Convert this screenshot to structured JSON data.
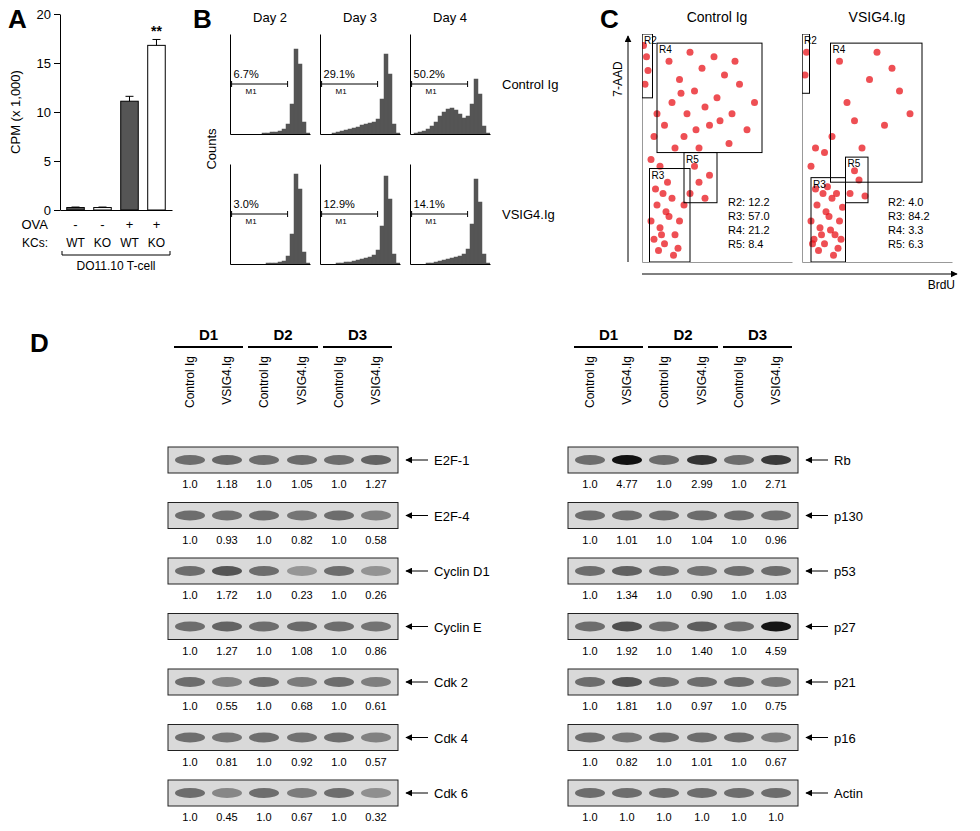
{
  "chart_data": [
    {
      "panel": "A",
      "type": "bar",
      "ylabel": "CPM (x 1,000)",
      "ylim": [
        0,
        20
      ],
      "yticks": [
        0,
        5,
        10,
        15,
        20
      ],
      "categories": [
        "WT",
        "KO",
        "WT",
        "KO"
      ],
      "category_label": "KCs:",
      "values": [
        0.25,
        0.25,
        11.1,
        16.8
      ],
      "errors": [
        0.05,
        0.05,
        0.5,
        0.6
      ],
      "colors": [
        "#555555",
        "#ffffff",
        "#555555",
        "#ffffff"
      ],
      "significance": [
        null,
        null,
        null,
        "**"
      ],
      "condition_label": "OVA",
      "conditions": [
        "-",
        "-",
        "+",
        "+"
      ],
      "group_label": "DO11.10 T-cell"
    },
    {
      "panel": "B",
      "type": "histogram",
      "ylabel": "Counts",
      "columns": [
        "Day 2",
        "Day 3",
        "Day 4"
      ],
      "rows": [
        "Control Ig",
        "VSIG4.Ig"
      ],
      "xlim": [
        0,
        100
      ],
      "ylim": [
        0,
        100
      ],
      "tick_labels": false,
      "bins": [
        0,
        5,
        10,
        15,
        20,
        25,
        30,
        35,
        40,
        45,
        50,
        55,
        60,
        65,
        70,
        75,
        80,
        85,
        90,
        95,
        100
      ],
      "gate": [
        2,
        72
      ],
      "gate_name": "M1",
      "cells": [
        [
          {
            "counts": [
              0,
              0,
              0,
              0,
              0,
              0,
              0,
              0,
              1,
              1,
              2,
              2,
              3,
              5,
              10,
              30,
              85,
              70,
              12,
              1
            ],
            "label": "6.7%"
          },
          {
            "counts": [
              0,
              0,
              0,
              1,
              2,
              3,
              4,
              5,
              6,
              7,
              9,
              10,
              11,
              12,
              15,
              35,
              80,
              60,
              10,
              1
            ],
            "label": "29.1%"
          },
          {
            "counts": [
              0,
              1,
              2,
              3,
              5,
              8,
              12,
              18,
              22,
              25,
              26,
              24,
              20,
              16,
              18,
              30,
              55,
              40,
              8,
              1
            ],
            "label": "50.2%"
          }
        ],
        [
          {
            "counts": [
              0,
              0,
              0,
              0,
              0,
              0,
              0,
              0,
              0,
              1,
              1,
              1,
              2,
              3,
              8,
              30,
              90,
              75,
              12,
              1
            ],
            "label": "3.0%"
          },
          {
            "counts": [
              0,
              0,
              0,
              0,
              1,
              1,
              2,
              2,
              3,
              4,
              5,
              6,
              7,
              9,
              14,
              38,
              88,
              65,
              10,
              1
            ],
            "label": "12.9%"
          },
          {
            "counts": [
              0,
              0,
              0,
              0,
              1,
              1,
              2,
              3,
              4,
              5,
              6,
              7,
              8,
              10,
              15,
              40,
              85,
              62,
              10,
              1
            ],
            "label": "14.1%"
          }
        ]
      ]
    },
    {
      "panel": "C",
      "type": "scatter",
      "xlabel": "BrdU",
      "ylabel": "7-AAD",
      "columns": [
        "Control Ig",
        "VSIG4.Ig"
      ],
      "xlim": [
        0,
        100
      ],
      "ylim": [
        0,
        100
      ],
      "tick_labels": false,
      "color": "#e8141b",
      "plots": [
        {
          "x": [
            8,
            12,
            15,
            18,
            10,
            22,
            14,
            20,
            25,
            6,
            17,
            11,
            24,
            28,
            9,
            21,
            16,
            13,
            32,
            38,
            42,
            35,
            45,
            15,
            20,
            25,
            18,
            30,
            35,
            28,
            40,
            45,
            50,
            38,
            55,
            60,
            22,
            32,
            48,
            65,
            70,
            42,
            26,
            58,
            36,
            52,
            75,
            62,
            2,
            3,
            4,
            1,
            6,
            8,
            10,
            12
          ],
          "y": [
            10,
            15,
            8,
            20,
            25,
            12,
            30,
            28,
            18,
            18,
            35,
            5,
            6,
            25,
            32,
            3,
            22,
            12,
            30,
            35,
            28,
            42,
            38,
            60,
            70,
            80,
            88,
            65,
            75,
            55,
            85,
            60,
            72,
            50,
            82,
            65,
            50,
            92,
            90,
            78,
            58,
            68,
            74,
            52,
            58,
            62,
            70,
            88,
            78,
            90,
            84,
            95,
            45,
            55,
            65,
            42
          ],
          "gates": [
            {
              "name": "R2",
              "x": [
                0,
                7
              ],
              "y": [
                72,
                100
              ]
            },
            {
              "name": "R4",
              "x": [
                10,
                80
              ],
              "y": [
                48,
                96
              ]
            },
            {
              "name": "R3",
              "x": [
                5,
                32
              ],
              "y": [
                0,
                41
              ]
            },
            {
              "name": "R5",
              "x": [
                28,
                50
              ],
              "y": [
                26,
                48
              ]
            }
          ],
          "stats": [
            "R2: 12.2",
            "R3: 57.0",
            "R4: 21.2",
            "R5: 8.4"
          ]
        },
        {
          "x": [
            8,
            12,
            15,
            18,
            10,
            22,
            14,
            20,
            25,
            6,
            17,
            11,
            24,
            27,
            9,
            21,
            16,
            13,
            19,
            23,
            7,
            26,
            32,
            38,
            42,
            35,
            20,
            30,
            45,
            55,
            40,
            65,
            25,
            50,
            72,
            35,
            60,
            15,
            2,
            3,
            6,
            9
          ],
          "y": [
            10,
            15,
            8,
            20,
            25,
            12,
            30,
            28,
            18,
            18,
            33,
            5,
            6,
            24,
            32,
            3,
            22,
            12,
            14,
            30,
            8,
            10,
            30,
            36,
            29,
            40,
            55,
            70,
            80,
            60,
            50,
            75,
            88,
            92,
            65,
            62,
            85,
            48,
            82,
            92,
            42,
            50
          ],
          "gates": [
            {
              "name": "R2",
              "x": [
                0,
                5
              ],
              "y": [
                74,
                100
              ]
            },
            {
              "name": "R4",
              "x": [
                19,
                80
              ],
              "y": [
                35,
                96
              ]
            },
            {
              "name": "R3",
              "x": [
                6,
                29
              ],
              "y": [
                0,
                37
              ]
            },
            {
              "name": "R5",
              "x": [
                29,
                44
              ],
              "y": [
                26,
                46
              ]
            }
          ],
          "stats": [
            "R2: 4.0",
            "R3: 84.2",
            "R4: 3.3",
            "R5: 6.3"
          ]
        }
      ]
    }
  ],
  "blots": {
    "panel": "D",
    "sides": [
      {
        "groups": [
          "D1",
          "D2",
          "D3"
        ],
        "lanes": [
          "Control Ig",
          "VSIG4.Ig",
          "Control Ig",
          "VSIG4.Ig",
          "Control Ig",
          "VSIG4.Ig"
        ],
        "rows": [
          {
            "name": "E2F-1",
            "values": [
              1.0,
              1.18,
              1.0,
              1.05,
              1.0,
              1.27
            ],
            "value_labels": [
              "1.0",
              "1.18",
              "1.0",
              "1.05",
              "1.0",
              "1.27"
            ]
          },
          {
            "name": "E2F-4",
            "values": [
              1.0,
              0.93,
              1.0,
              0.82,
              1.0,
              0.58
            ],
            "value_labels": [
              "1.0",
              "0.93",
              "1.0",
              "0.82",
              "1.0",
              "0.58"
            ]
          },
          {
            "name": "Cyclin D1",
            "values": [
              1.0,
              1.72,
              1.0,
              0.23,
              1.0,
              0.26
            ],
            "value_labels": [
              "1.0",
              "1.72",
              "1.0",
              "0.23",
              "1.0",
              "0.26"
            ]
          },
          {
            "name": "Cyclin E",
            "values": [
              1.0,
              1.27,
              1.0,
              1.08,
              1.0,
              0.86
            ],
            "value_labels": [
              "1.0",
              "1.27",
              "1.0",
              "1.08",
              "1.0",
              "0.86"
            ]
          },
          {
            "name": "Cdk 2",
            "values": [
              1.0,
              0.55,
              1.0,
              0.68,
              1.0,
              0.61
            ],
            "value_labels": [
              "1.0",
              "0.55",
              "1.0",
              "0.68",
              "1.0",
              "0.61"
            ]
          },
          {
            "name": "Cdk 4",
            "values": [
              1.0,
              0.81,
              1.0,
              0.92,
              1.0,
              0.57
            ],
            "value_labels": [
              "1.0",
              "0.81",
              "1.0",
              "0.92",
              "1.0",
              "0.57"
            ]
          },
          {
            "name": "Cdk 6",
            "values": [
              1.0,
              0.45,
              1.0,
              0.67,
              1.0,
              0.32
            ],
            "value_labels": [
              "1.0",
              "0.45",
              "1.0",
              "0.67",
              "1.0",
              "0.32"
            ]
          }
        ]
      },
      {
        "groups": [
          "D1",
          "D2",
          "D3"
        ],
        "lanes": [
          "Control Ig",
          "VSIG4.Ig",
          "Control Ig",
          "VSIG4.Ig",
          "Control Ig",
          "VSIG4.Ig"
        ],
        "rows": [
          {
            "name": "Rb",
            "values": [
              1.0,
              4.77,
              1.0,
              2.99,
              1.0,
              2.71
            ],
            "value_labels": [
              "1.0",
              "4.77",
              "1.0",
              "2.99",
              "1.0",
              "2.71"
            ]
          },
          {
            "name": "p130",
            "values": [
              1.0,
              1.01,
              1.0,
              1.04,
              1.0,
              0.96
            ],
            "value_labels": [
              "1.0",
              "1.01",
              "1.0",
              "1.04",
              "1.0",
              "0.96"
            ]
          },
          {
            "name": "p53",
            "values": [
              1.0,
              1.34,
              1.0,
              0.9,
              1.0,
              1.03
            ],
            "value_labels": [
              "1.0",
              "1.34",
              "1.0",
              "0.90",
              "1.0",
              "1.03"
            ]
          },
          {
            "name": "p27",
            "values": [
              1.0,
              1.92,
              1.0,
              1.4,
              1.0,
              4.59
            ],
            "value_labels": [
              "1.0",
              "1.92",
              "1.0",
              "1.40",
              "1.0",
              "4.59"
            ]
          },
          {
            "name": "p21",
            "values": [
              1.0,
              1.81,
              1.0,
              0.97,
              1.0,
              0.75
            ],
            "value_labels": [
              "1.0",
              "1.81",
              "1.0",
              "0.97",
              "1.0",
              "0.75"
            ]
          },
          {
            "name": "p16",
            "values": [
              1.0,
              0.82,
              1.0,
              1.01,
              1.0,
              0.67
            ],
            "value_labels": [
              "1.0",
              "0.82",
              "1.0",
              "1.01",
              "1.0",
              "0.67"
            ]
          },
          {
            "name": "Actin",
            "values": [
              1.0,
              1.0,
              1.0,
              1.0,
              1.0,
              1.0
            ],
            "value_labels": [
              "1.0",
              "1.0",
              "1.0",
              "1.0",
              "1.0",
              "1.0"
            ]
          }
        ]
      }
    ]
  }
}
